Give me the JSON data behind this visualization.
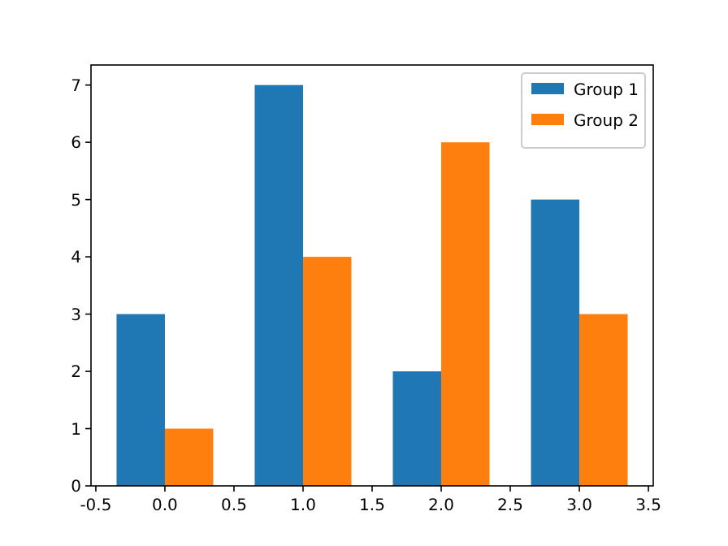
{
  "chart_data": {
    "type": "bar",
    "x": [
      0,
      1,
      2,
      3
    ],
    "series": [
      {
        "name": "Group 1",
        "color": "#1f77b4",
        "values": [
          3,
          7,
          2,
          5
        ]
      },
      {
        "name": "Group 2",
        "color": "#ff7f0e",
        "values": [
          1,
          4,
          6,
          3
        ]
      }
    ],
    "xlim": [
      -0.535,
      3.535
    ],
    "xticks": [
      {
        "value": -0.5,
        "label": "-0.5"
      },
      {
        "value": 0,
        "label": "0.0"
      },
      {
        "value": 0.5,
        "label": "0.5"
      },
      {
        "value": 1,
        "label": "1.0"
      },
      {
        "value": 1.5,
        "label": "1.5"
      },
      {
        "value": 2,
        "label": "2.0"
      },
      {
        "value": 2.5,
        "label": "2.5"
      },
      {
        "value": 3,
        "label": "3.0"
      },
      {
        "value": 3.5,
        "label": "3.5"
      }
    ],
    "ylim": [
      0,
      7.35
    ],
    "yticks": [
      0,
      1,
      2,
      3,
      4,
      5,
      6,
      7
    ],
    "grid": false,
    "legend": "top right"
  }
}
